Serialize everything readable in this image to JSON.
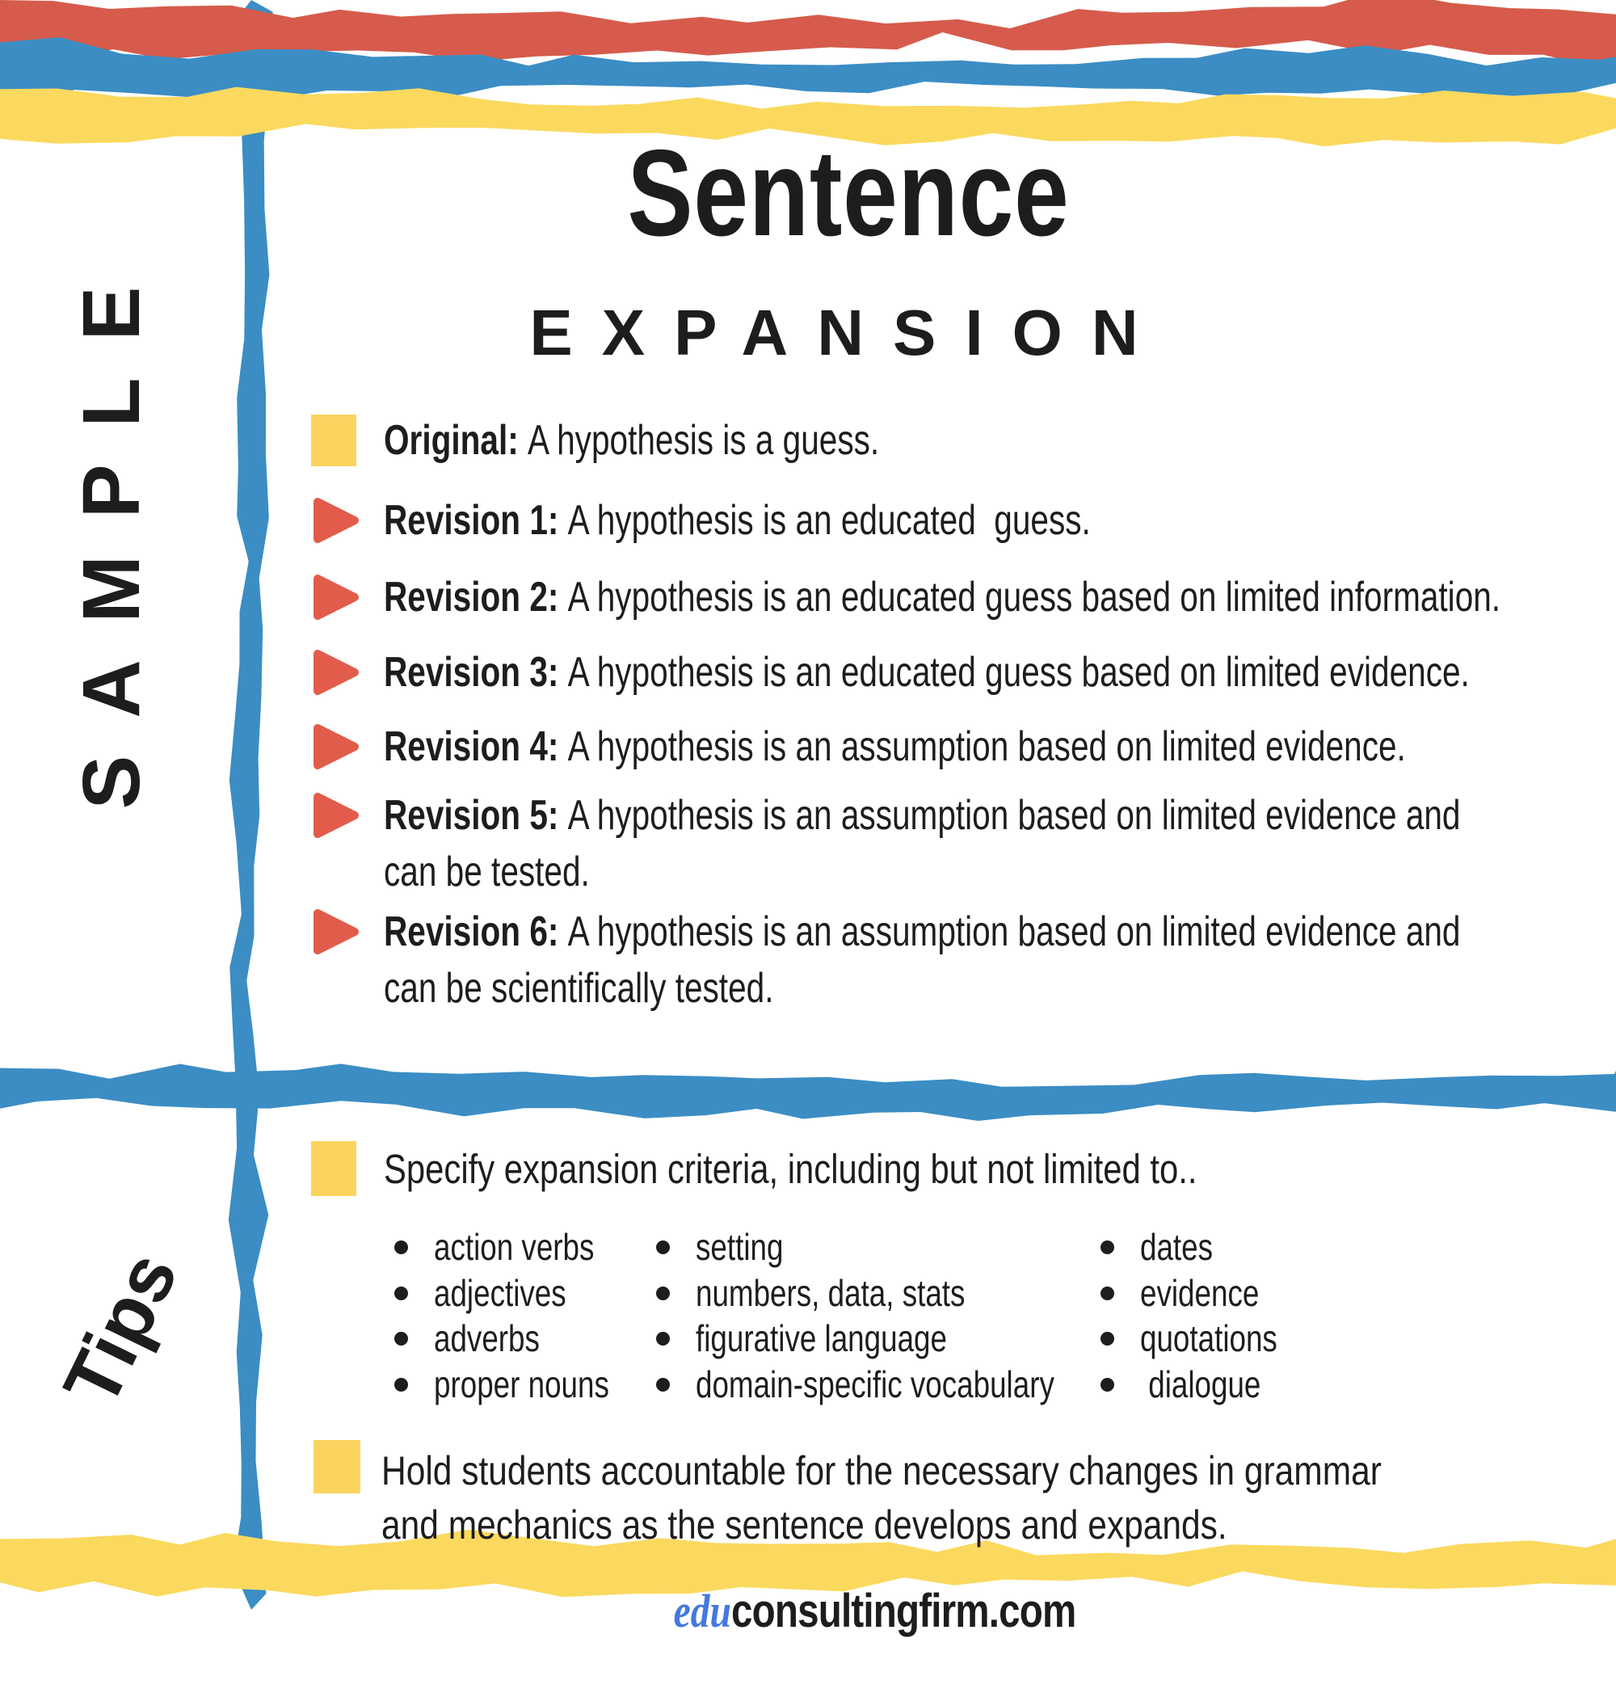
{
  "page": {
    "title_line1": "Sentence",
    "title_line2": "EXPANSION",
    "side_label_top": "SAMPLE",
    "side_label_bottom": "Tips",
    "footer": {
      "brand_prefix": "edu",
      "brand_rest": "consultingfirm.com"
    }
  },
  "sample": {
    "rows": [
      {
        "bullet": "square",
        "label": "Original: ",
        "text": "A hypothesis is a guess."
      },
      {
        "bullet": "triangle",
        "label": "Revision 1: ",
        "text": "A hypothesis is an educated  guess."
      },
      {
        "bullet": "triangle",
        "label": "Revision 2: ",
        "text": "A hypothesis is an educated guess based on limited information."
      },
      {
        "bullet": "triangle",
        "label": "Revision 3: ",
        "text": "A hypothesis is an educated guess based on limited evidence."
      },
      {
        "bullet": "triangle",
        "label": "Revision 4: ",
        "text": "A hypothesis is an assumption based on limited evidence."
      },
      {
        "bullet": "triangle",
        "label": "Revision 5: ",
        "text": "A hypothesis is an assumption based on limited evidence and",
        "text_line2": "can be tested."
      },
      {
        "bullet": "triangle",
        "label": "Revision 6: ",
        "text": "A hypothesis is an assumption based on limited evidence and",
        "text_line2": "can be scientifically tested."
      }
    ]
  },
  "tips": {
    "intro": "Specify expansion criteria, including but not limited to..",
    "columns": [
      [
        "action verbs",
        "adjectives",
        "adverbs",
        "proper nouns"
      ],
      [
        "setting",
        "numbers, data, stats",
        "figurative language",
        "domain-specific vocabulary"
      ],
      [
        "dates",
        "evidence",
        "quotations",
        " dialogue"
      ]
    ],
    "note_line1": "Hold students accountable for the necessary changes in grammar",
    "note_line2": "and mechanics as the sentence develops and expands."
  },
  "colors": {
    "stripe_red": "#d65b4c",
    "stripe_blue": "#3b8dc4",
    "stripe_yellow": "#fbd95e",
    "bullet_red": "#e25c4b",
    "bullet_yellow": "#fbd45f",
    "edu_blue": "#4478e0",
    "ink": "#1d1d1d"
  }
}
